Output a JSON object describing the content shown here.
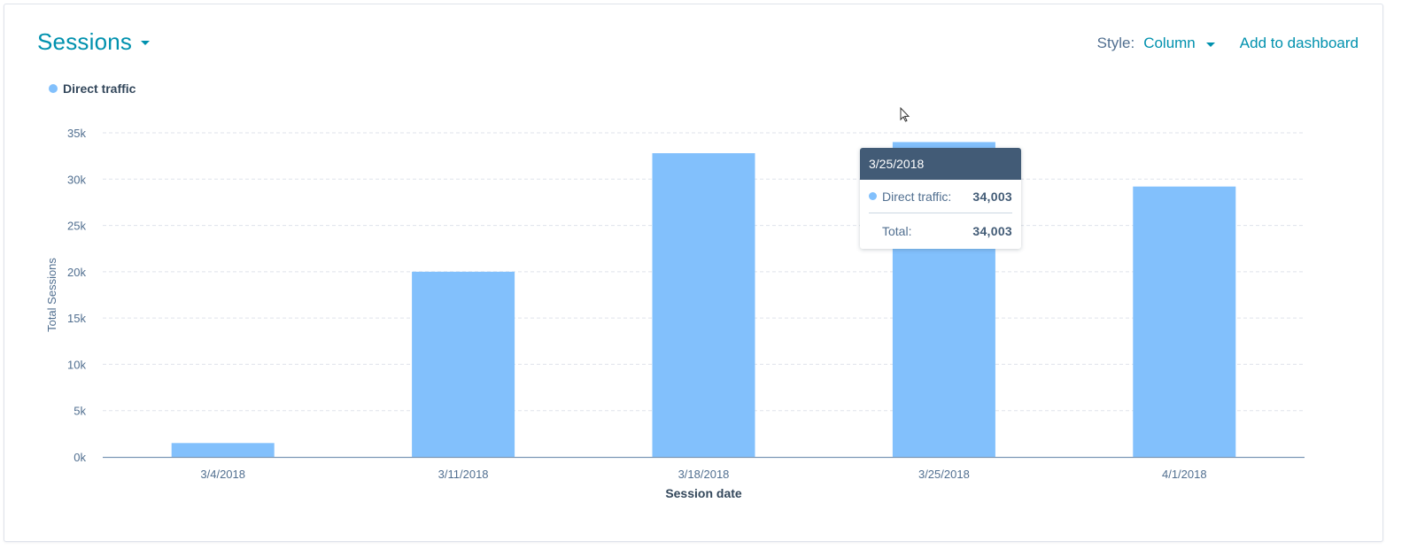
{
  "header": {
    "title": "Sessions",
    "style_label": "Style:",
    "style_value": "Column",
    "add_to_dashboard": "Add to dashboard"
  },
  "colors": {
    "accent": "#0091ae",
    "bar": "#82c0fc",
    "tooltip_header": "#425b76",
    "axis_text": "#516f90",
    "grid": "#dfe3eb"
  },
  "tooltip": {
    "date": "3/25/2018",
    "series_label": "Direct traffic:",
    "series_value": "34,003",
    "total_label": "Total:",
    "total_value": "34,003"
  },
  "chart_data": {
    "type": "bar",
    "title": "",
    "xlabel": "Session date",
    "ylabel": "Total Sessions",
    "categories": [
      "3/4/2018",
      "3/11/2018",
      "3/18/2018",
      "3/25/2018",
      "4/1/2018"
    ],
    "series": [
      {
        "name": "Direct traffic",
        "values": [
          1500,
          20000,
          32800,
          34003,
          29200
        ]
      }
    ],
    "ylim": [
      0,
      35000
    ],
    "yticks": [
      0,
      5000,
      10000,
      15000,
      20000,
      25000,
      30000,
      35000
    ],
    "ytick_labels": [
      "0k",
      "5k",
      "10k",
      "15k",
      "20k",
      "25k",
      "30k",
      "35k"
    ],
    "grid": true,
    "legend_position": "top-left"
  }
}
